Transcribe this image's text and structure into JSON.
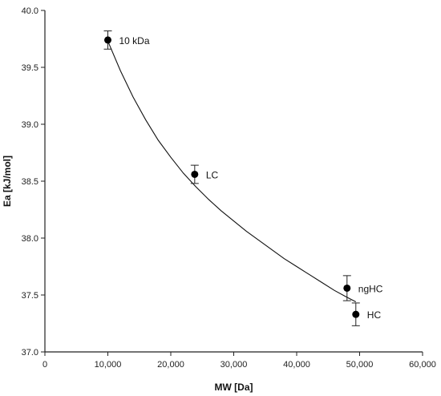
{
  "chart_data": {
    "type": "scatter",
    "xlabel": "MW [Da]",
    "ylabel": "Ea [kJ/mol]",
    "xlim": [
      0,
      60000
    ],
    "ylim": [
      37.0,
      40.0
    ],
    "x_ticks": [
      0,
      10000,
      20000,
      30000,
      40000,
      50000,
      60000
    ],
    "x_tick_labels": [
      "0",
      "10,000",
      "20,000",
      "30,000",
      "40,000",
      "50,000",
      "60,000"
    ],
    "y_ticks": [
      37.0,
      37.5,
      38.0,
      38.5,
      39.0,
      39.5,
      40.0
    ],
    "y_tick_labels": [
      "37.0",
      "37.5",
      "38.0",
      "38.5",
      "39.0",
      "39.5",
      "40.0"
    ],
    "grid": false,
    "series": [
      {
        "points": [
          {
            "x": 10000,
            "y": 39.74,
            "err": 0.08,
            "label": "10 kDa"
          },
          {
            "x": 23800,
            "y": 38.56,
            "err": 0.08,
            "label": "LC"
          },
          {
            "x": 48000,
            "y": 37.56,
            "err": 0.11,
            "label": "ngHC"
          },
          {
            "x": 49400,
            "y": 37.33,
            "err": 0.1,
            "label": "HC"
          }
        ]
      }
    ],
    "fit_curve": {
      "x": [
        10000,
        12000,
        14000,
        16000,
        18000,
        20000,
        22000,
        24000,
        26000,
        28000,
        30000,
        32000,
        34000,
        36000,
        38000,
        40000,
        42000,
        44000,
        46000,
        48000,
        49400
      ],
      "y": [
        39.73,
        39.47,
        39.24,
        39.04,
        38.86,
        38.71,
        38.57,
        38.45,
        38.34,
        38.24,
        38.15,
        38.06,
        37.98,
        37.9,
        37.82,
        37.75,
        37.68,
        37.61,
        37.54,
        37.48,
        37.44
      ]
    }
  }
}
